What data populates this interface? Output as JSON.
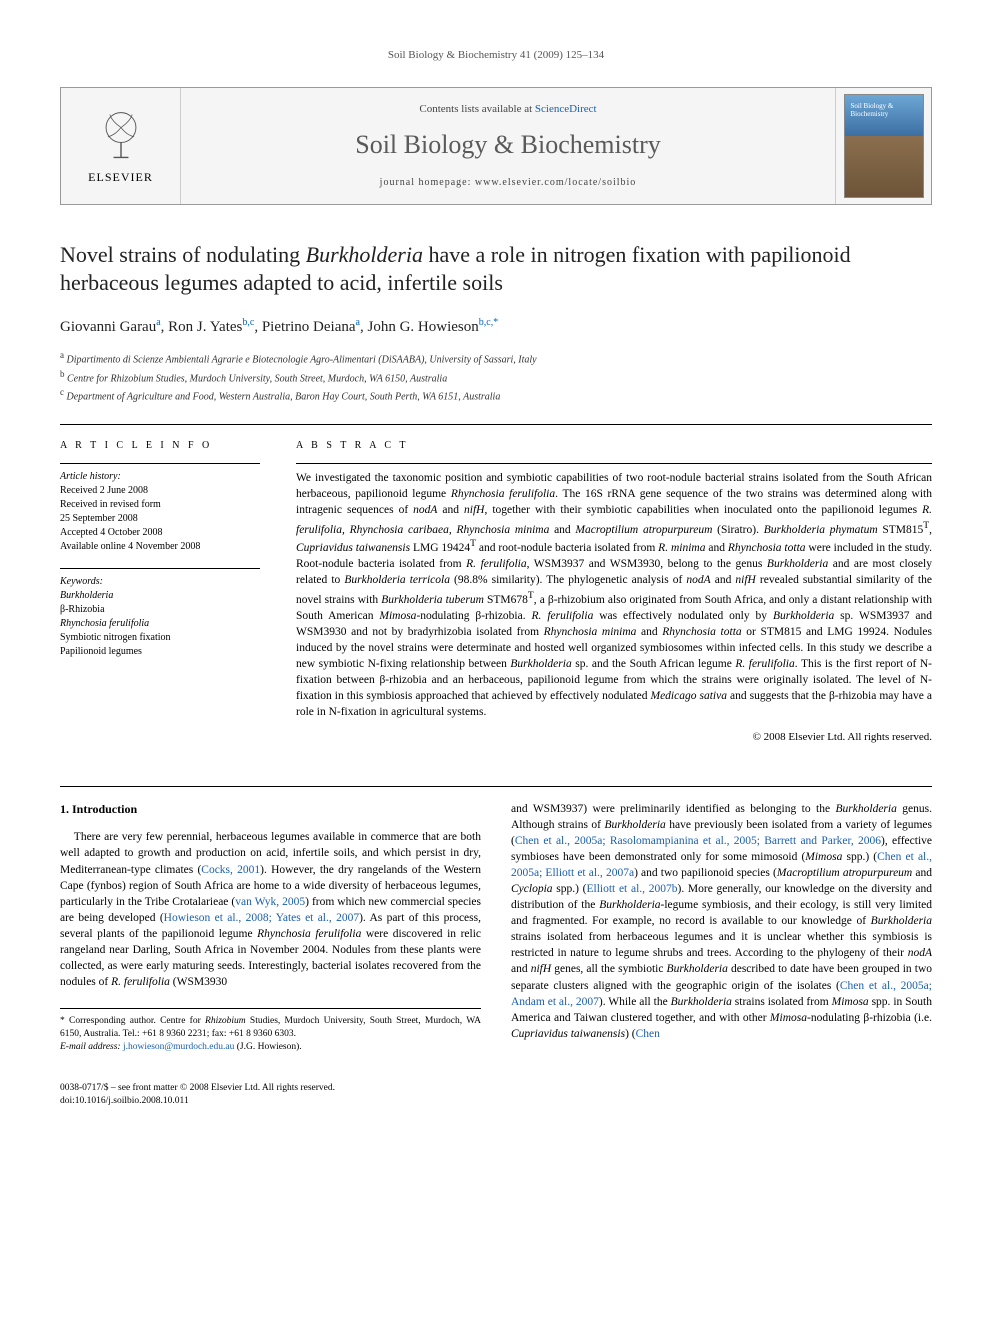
{
  "running_head": "Soil Biology & Biochemistry 41 (2009) 125–134",
  "masthead": {
    "contents_prefix": "Contents lists available at ",
    "contents_link": "ScienceDirect",
    "journal": "Soil Biology & Biochemistry",
    "homepage_prefix": "journal homepage: ",
    "homepage_url": "www.elsevier.com/locate/soilbio",
    "publisher": "ELSEVIER"
  },
  "title_a": "Novel strains of nodulating ",
  "title_b_ital": "Burkholderia",
  "title_c": " have a role in nitrogen fixation with papilionoid herbaceous legumes adapted to acid, infertile soils",
  "authors_html": "Giovanni Garau<sup>a</sup>, Ron J. Yates<sup>b,c</sup>, Pietrino Deiana<sup>a</sup>, John G. Howieson<sup>b,c,*</sup>",
  "affiliations": [
    "a Dipartimento di Scienze Ambientali Agrarie e Biotecnologie Agro-Alimentari (DiSAABA), University of Sassari, Italy",
    "b Centre for Rhizobium Studies, Murdoch University, South Street, Murdoch, WA 6150, Australia",
    "c Department of Agriculture and Food, Western Australia, Baron Hay Court, South Perth, WA 6151, Australia"
  ],
  "info": {
    "heading": "A R T I C L E   I N F O",
    "history_label": "Article history:",
    "history": [
      "Received 2 June 2008",
      "Received in revised form",
      "25 September 2008",
      "Accepted 4 October 2008",
      "Available online 4 November 2008"
    ],
    "keywords_label": "Keywords:",
    "keywords": [
      "Burkholderia",
      "β-Rhizobia",
      "Rhynchosia ferulifolia",
      "Symbiotic nitrogen fixation",
      "Papilionoid legumes"
    ]
  },
  "abstract": {
    "heading": "A B S T R A C T",
    "text_a": "We investigated the taxonomic position and symbiotic capabilities of two root-nodule bacterial strains isolated from the South African herbaceous, papilionoid legume ",
    "text_b_ital": "Rhynchosia ferulifolia",
    "text_c": ". The 16S rRNA gene sequence of the two strains was determined along with intragenic sequences of ",
    "text_d_ital": "nodA",
    "text_e": " and ",
    "text_f_ital": "nifH",
    "text_g": ", together with their symbiotic capabilities when inoculated onto the papilionoid legumes ",
    "text_h_ital": "R. ferulifolia, Rhynchosia caribaea, Rhynchosia minima",
    "text_i": " and ",
    "text_j_ital": "Macroptilium atropurpureum",
    "text_k": " (Siratro). ",
    "text_l_ital": "Burkholderia phymatum",
    "text_m": " STM815",
    "text_n": "T",
    "text_o": ", ",
    "text_p_ital": "Cupriavidus taiwanensis",
    "text_q": " LMG 19424",
    "text_r": "T",
    "text_s": " and root-nodule bacteria isolated from ",
    "text_t_ital": "R. minima",
    "text_u": " and ",
    "text_v_ital": "Rhynchosia totta",
    "text_w": " were included in the study. Root-nodule bacteria isolated from ",
    "text_x_ital": "R. ferulifolia",
    "text_y": ", WSM3937 and WSM3930, belong to the genus ",
    "text_z_ital": "Burkholderia",
    "text_aa": " and are most closely related to ",
    "text_ab_ital": "Burkholderia terricola",
    "text_ac": " (98.8% similarity). The phylogenetic analysis of ",
    "text_ad_ital": "nodA",
    "text_ae": " and ",
    "text_af_ital": "nifH",
    "text_ag": " revealed substantial similarity of the novel strains with ",
    "text_ah_ital": "Burkholderia tuberum",
    "text_ai": " STM678",
    "text_aj": "T",
    "text_ak": ", a β-rhizobium also originated from South Africa, and only a distant relationship with South American ",
    "text_al_ital": "Mimosa",
    "text_am": "-nodulating β-rhizobia. ",
    "text_an_ital": "R. ferulifolia",
    "text_ao": " was effectively nodulated only by ",
    "text_ap_ital": "Burkholderia",
    "text_aq": " sp. WSM3937 and WSM3930 and not by bradyrhizobia isolated from ",
    "text_ar_ital": "Rhynchosia minima",
    "text_as": " and ",
    "text_at_ital": "Rhynchosia totta",
    "text_au": " or STM815 and LMG 19924. Nodules induced by the novel strains were determinate and hosted well organized symbiosomes within infected cells. In this study we describe a new symbiotic N-fixing relationship between ",
    "text_av_ital": "Burkholderia",
    "text_aw": " sp. and the South African legume ",
    "text_ax_ital": "R. ferulifolia",
    "text_ay": ". This is the first report of N-fixation between β-rhizobia and an herbaceous, papilionoid legume from which the strains were originally isolated. The level of N-fixation in this symbiosis approached that achieved by effectively nodulated ",
    "text_az_ital": "Medicago sativa",
    "text_ba": " and suggests that the β-rhizobia may have a role in N-fixation in agricultural systems.",
    "copyright": "© 2008 Elsevier Ltd. All rights reserved."
  },
  "intro_heading": "1. Introduction",
  "intro_col1_a": "There are very few perennial, herbaceous legumes available in commerce that are both well adapted to growth and production on acid, infertile soils, and which persist in dry, Mediterranean-type climates (",
  "intro_col1_ref1": "Cocks, 2001",
  "intro_col1_b": "). However, the dry rangelands of the Western Cape (fynbos) region of South Africa are home to a wide diversity of herbaceous legumes, particularly in the Tribe Crotalarieae (",
  "intro_col1_ref2": "van Wyk, 2005",
  "intro_col1_c": ") from which new commercial species are being developed (",
  "intro_col1_ref3": "Howieson et al., 2008; Yates et al., 2007",
  "intro_col1_d": "). As part of this process, several plants of the papilionoid legume ",
  "intro_col1_ital1": "Rhynchosia ferulifolia",
  "intro_col1_e": " were discovered in relic rangeland near Darling, South Africa in November 2004. Nodules from these plants were collected, as were early maturing seeds. Interestingly, bacterial isolates recovered from the nodules of ",
  "intro_col1_ital2": "R. ferulifolia",
  "intro_col1_f": " (WSM3930",
  "intro_col2_a": "and WSM3937) were preliminarily identified as belonging to the ",
  "intro_col2_ital1": "Burkholderia",
  "intro_col2_b": " genus. Although strains of ",
  "intro_col2_ital2": "Burkholderia",
  "intro_col2_c": " have previously been isolated from a variety of legumes (",
  "intro_col2_ref1": "Chen et al., 2005a; Rasolomampianina et al., 2005; Barrett and Parker, 2006",
  "intro_col2_d": "), effective symbioses have been demonstrated only for some mimosoid (",
  "intro_col2_ital3": "Mimosa",
  "intro_col2_e": " spp.) (",
  "intro_col2_ref2": "Chen et al., 2005a; Elliott et al., 2007a",
  "intro_col2_f": ") and two papilionoid species (",
  "intro_col2_ital4": "Macroptilium atropurpureum",
  "intro_col2_g": " and ",
  "intro_col2_ital5": "Cyclopia",
  "intro_col2_h": " spp.) (",
  "intro_col2_ref3": "Elliott et al., 2007b",
  "intro_col2_i": "). More generally, our knowledge on the diversity and distribution of the ",
  "intro_col2_ital6": "Burkholderia",
  "intro_col2_j": "-legume symbiosis, and their ecology, is still very limited and fragmented. For example, no record is available to our knowledge of ",
  "intro_col2_ital7": "Burkholderia",
  "intro_col2_k": " strains isolated from herbaceous legumes and it is unclear whether this symbiosis is restricted in nature to legume shrubs and trees. According to the phylogeny of their ",
  "intro_col2_ital8": "nodA",
  "intro_col2_l": " and ",
  "intro_col2_ital9": "nifH",
  "intro_col2_m": " genes, all the symbiotic ",
  "intro_col2_ital10": "Burkholderia",
  "intro_col2_n": " described to date have been grouped in two separate clusters aligned with the geographic origin of the isolates (",
  "intro_col2_ref4": "Chen et al., 2005a; Andam et al., 2007",
  "intro_col2_o": "). While all the ",
  "intro_col2_ital11": "Burkholderia",
  "intro_col2_p": " strains isolated from ",
  "intro_col2_ital12": "Mimosa",
  "intro_col2_q": " spp. in South America and Taiwan clustered together, and with other ",
  "intro_col2_ital13": "Mimosa",
  "intro_col2_r": "-nodulating β-rhizobia (i.e. ",
  "intro_col2_ital14": "Cupriavidus taiwanensis",
  "intro_col2_s": ") (",
  "intro_col2_ref5": "Chen",
  "corr": {
    "star": "*",
    "label": " Corresponding author. Centre for ",
    "ital": "Rhizobium",
    "rest": " Studies, Murdoch University, South Street, Murdoch, WA 6150, Australia. Tel.: +61 8 9360 2231; fax: +61 8 9360 6303.",
    "email_label": "E-mail address: ",
    "email": "j.howieson@murdoch.edu.au",
    "who": " (J.G. Howieson)."
  },
  "bottom": {
    "line1": "0038-0717/$ – see front matter © 2008 Elsevier Ltd. All rights reserved.",
    "line2": "doi:10.1016/j.soilbio.2008.10.011"
  }
}
